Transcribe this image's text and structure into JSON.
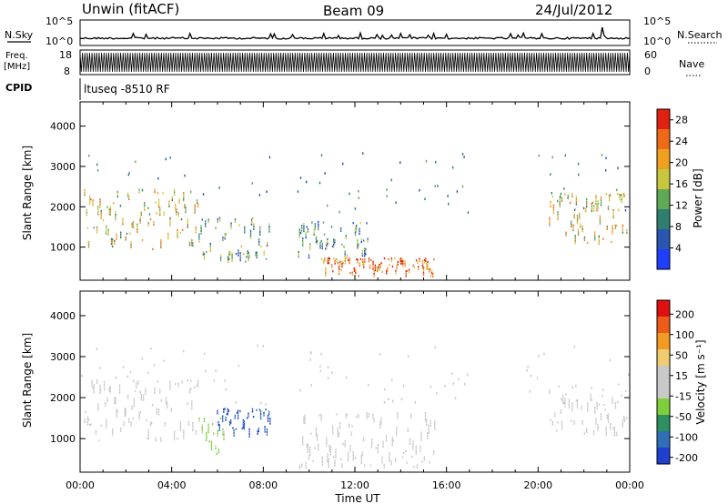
{
  "header": {
    "station": "Unwin (fitACF)",
    "beam": "Beam 09",
    "date": "24/Jul/2012"
  },
  "top_panels": {
    "nsky": {
      "label": "N.Sky",
      "right_label": "N.Search",
      "ticks_left": [
        "10^5",
        "10^0"
      ],
      "ticks_right": [
        "10^5",
        "10^0"
      ]
    },
    "freq": {
      "label_line1": "Freq.",
      "label_line2": "[MHz]",
      "right_label": "Nave",
      "ticks_left": [
        "18",
        "8"
      ],
      "ticks_right": [
        "60",
        "0"
      ]
    },
    "cpid": {
      "label": "CPID",
      "value": "ltuseq -8510 RF"
    }
  },
  "time_axis": {
    "title": "Time UT",
    "tick_labels": [
      "00:00",
      "04:00",
      "08:00",
      "12:00",
      "16:00",
      "20:00",
      "00:00"
    ]
  },
  "colors": {
    "power": [
      "#1f3fff",
      "#2a55b0",
      "#2e7f70",
      "#5fa855",
      "#c8c63c",
      "#f0a020",
      "#ee6a18",
      "#e02010"
    ],
    "velocity": [
      "#e01010",
      "#ee5a18",
      "#f29a22",
      "#f0cc70",
      "#c9c9c9",
      "#c9c9c9",
      "#7fcf3c",
      "#2e8f5f",
      "#2f6fb8",
      "#2040d0"
    ]
  },
  "chart_data": [
    {
      "type": "heatmap",
      "title": "",
      "ylabel": "Slant Range [km]",
      "xlabel": "Time UT",
      "xlim": [
        0,
        24
      ],
      "ylim": [
        180,
        4600
      ],
      "y_ticks": [
        "1000",
        "2000",
        "3000",
        "4000"
      ],
      "colorbar": {
        "label": "Power [dB]",
        "ticks": [
          "4",
          "8",
          "12",
          "16",
          "20",
          "24",
          "28"
        ],
        "range": [
          0,
          30
        ]
      },
      "regions": [
        {
          "t": [
            0.2,
            5.2
          ],
          "range": [
            900,
            2400
          ],
          "value": 18
        },
        {
          "t": [
            5.2,
            8.3
          ],
          "range": [
            600,
            1700
          ],
          "value": 12
        },
        {
          "t": [
            9.5,
            12.6
          ],
          "range": [
            700,
            1600
          ],
          "value": 10
        },
        {
          "t": [
            10.5,
            15.5
          ],
          "range": [
            250,
            700
          ],
          "value": 24
        },
        {
          "t": [
            20.5,
            23.9
          ],
          "range": [
            1000,
            2300
          ],
          "value": 18
        }
      ]
    },
    {
      "type": "heatmap",
      "title": "",
      "ylabel": "Slant Range [km]",
      "xlabel": "Time UT",
      "xlim": [
        0,
        24
      ],
      "ylim": [
        180,
        4600
      ],
      "y_ticks": [
        "1000",
        "2000",
        "3000",
        "4000"
      ],
      "colorbar": {
        "label": "Velocity [m s⁻¹]",
        "ticks": [
          "200",
          "100",
          "50",
          "15",
          "-15",
          "-50",
          "-100",
          "-200"
        ],
        "range": [
          -250,
          250
        ]
      },
      "regions": [
        {
          "t": [
            0.2,
            5.2
          ],
          "range": [
            900,
            2400
          ],
          "value": 0
        },
        {
          "t": [
            5.2,
            6.3
          ],
          "range": [
            600,
            1500
          ],
          "value": -70
        },
        {
          "t": [
            6.0,
            8.3
          ],
          "range": [
            1000,
            1700
          ],
          "value": -200
        },
        {
          "t": [
            9.5,
            15.5
          ],
          "range": [
            250,
            1600
          ],
          "value": 0
        },
        {
          "t": [
            20.5,
            23.9
          ],
          "range": [
            1000,
            2300
          ],
          "value": 0
        }
      ]
    }
  ]
}
